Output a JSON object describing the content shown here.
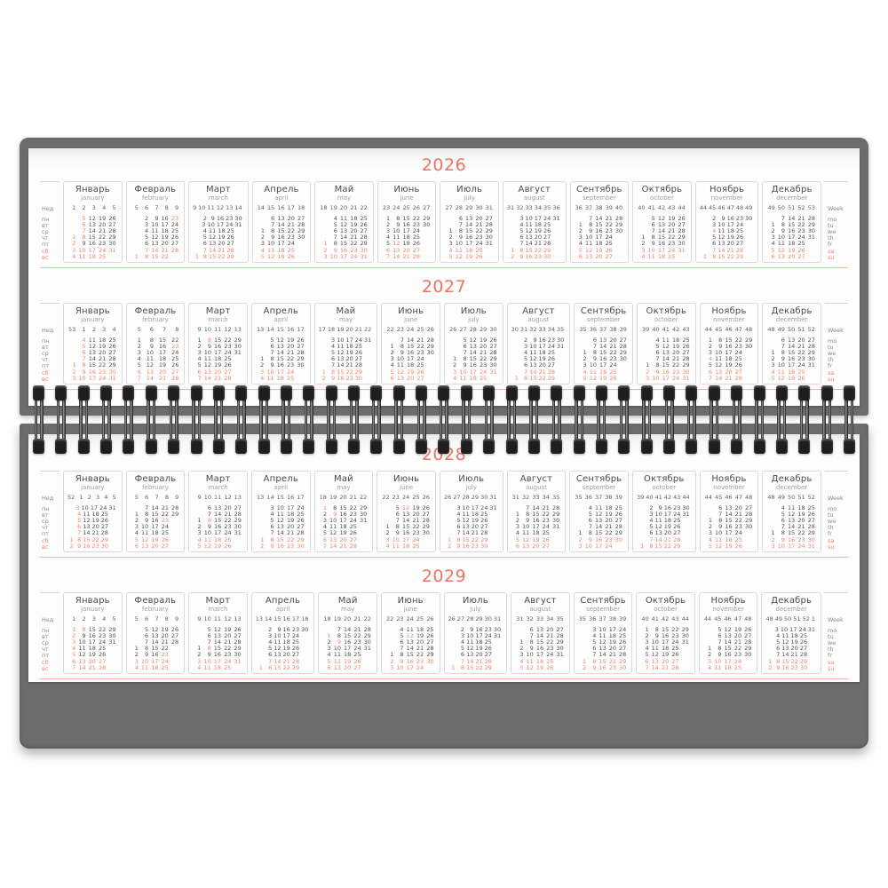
{
  "calendar": {
    "years": [
      "2026",
      "2027",
      "2028",
      "2029"
    ],
    "months": [
      {
        "ru": "Январь",
        "en": "january"
      },
      {
        "ru": "Февраль",
        "en": "february"
      },
      {
        "ru": "Март",
        "en": "march"
      },
      {
        "ru": "Апрель",
        "en": "april"
      },
      {
        "ru": "Май",
        "en": "may"
      },
      {
        "ru": "Июнь",
        "en": "june"
      },
      {
        "ru": "Июль",
        "en": "july"
      },
      {
        "ru": "Август",
        "en": "august"
      },
      {
        "ru": "Сентябрь",
        "en": "september"
      },
      {
        "ru": "Октябрь",
        "en": "october"
      },
      {
        "ru": "Ноябрь",
        "en": "november"
      },
      {
        "ru": "Декабрь",
        "en": "december"
      }
    ],
    "week_label_ru": "Нед",
    "week_label_en": "Week",
    "weekdays_ru": [
      "пн",
      "вт",
      "ср",
      "чт",
      "пт",
      "сб",
      "вс"
    ],
    "weekdays_en": [
      "mo",
      "tu",
      "we",
      "th",
      "fr",
      "sa",
      "su"
    ],
    "holidays_by_month": {
      "1": [
        1,
        2,
        3,
        4,
        5,
        6,
        7,
        8
      ],
      "2": [
        23
      ],
      "3": [
        8
      ],
      "5": [
        1,
        9
      ],
      "6": [
        12
      ],
      "11": [
        4
      ]
    }
  },
  "colors": {
    "accent": "#ed7464",
    "holiday_day": "#f0846f",
    "regular_day": "#4f4f4f",
    "week_number": "#5f5f5f",
    "month_name_ru": "#4a4a4a",
    "month_name_en": "#9e9e9e",
    "board_gray": "#6c6c6c",
    "month_box_border": "#dadada",
    "strip_underline": "#f5b3a2"
  }
}
